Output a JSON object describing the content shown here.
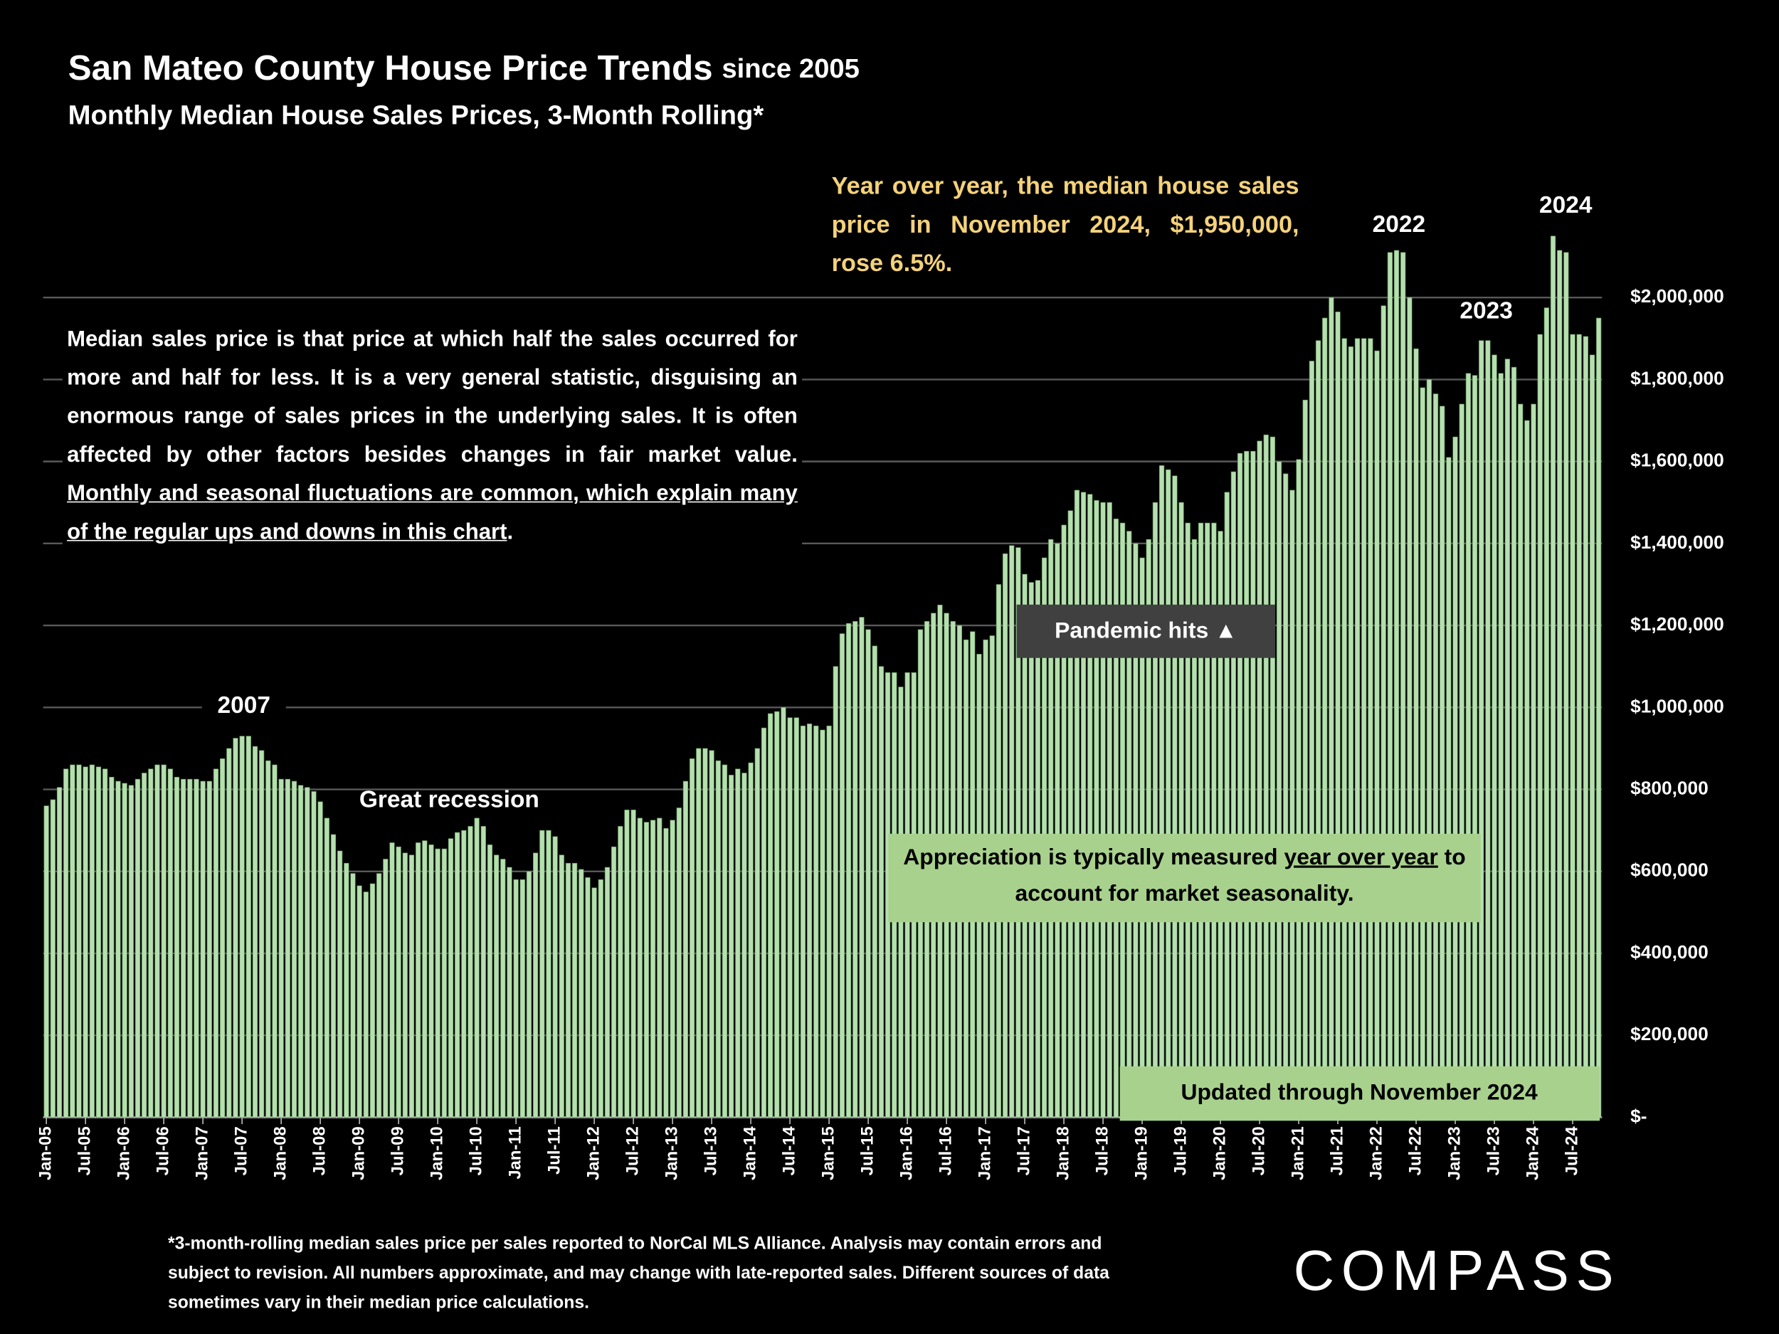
{
  "chart_data": {
    "type": "bar",
    "title": "San Mateo County House Price Trends",
    "title_suffix": "since 2005",
    "subtitle": "Monthly Median House Sales Prices, 3-Month Rolling*",
    "categories": [
      "Jan-05",
      null,
      null,
      null,
      null,
      null,
      "Jul-05",
      null,
      null,
      null,
      null,
      null,
      "Jan-06",
      null,
      null,
      null,
      null,
      null,
      "Jul-06",
      null,
      null,
      null,
      null,
      null,
      "Jan-07",
      null,
      null,
      null,
      null,
      null,
      "Jul-07",
      null,
      null,
      null,
      null,
      null,
      "Jan-08",
      null,
      null,
      null,
      null,
      null,
      "Jul-08",
      null,
      null,
      null,
      null,
      null,
      "Jan-09",
      null,
      null,
      null,
      null,
      null,
      "Jul-09",
      null,
      null,
      null,
      null,
      null,
      "Jan-10",
      null,
      null,
      null,
      null,
      null,
      "Jul-10",
      null,
      null,
      null,
      null,
      null,
      "Jan-11",
      null,
      null,
      null,
      null,
      null,
      "Jul-11",
      null,
      null,
      null,
      null,
      null,
      "Jan-12",
      null,
      null,
      null,
      null,
      null,
      "Jul-12",
      null,
      null,
      null,
      null,
      null,
      "Jan-13",
      null,
      null,
      null,
      null,
      null,
      "Jul-13",
      null,
      null,
      null,
      null,
      null,
      "Jan-14",
      null,
      null,
      null,
      null,
      null,
      "Jul-14",
      null,
      null,
      null,
      null,
      null,
      "Jan-15",
      null,
      null,
      null,
      null,
      null,
      "Jul-15",
      null,
      null,
      null,
      null,
      null,
      "Jan-16",
      null,
      null,
      null,
      null,
      null,
      "Jul-16",
      null,
      null,
      null,
      null,
      null,
      "Jan-17",
      null,
      null,
      null,
      null,
      null,
      "Jul-17",
      null,
      null,
      null,
      null,
      null,
      "Jan-18",
      null,
      null,
      null,
      null,
      null,
      "Jul-18",
      null,
      null,
      null,
      null,
      null,
      "Jan-19",
      null,
      null,
      null,
      null,
      null,
      "Jul-19",
      null,
      null,
      null,
      null,
      null,
      "Jan-20",
      null,
      null,
      null,
      null,
      null,
      "Jul-20",
      null,
      null,
      null,
      null,
      null,
      "Jan-21",
      null,
      null,
      null,
      null,
      null,
      "Jul-21",
      null,
      null,
      null,
      null,
      null,
      "Jan-22",
      null,
      null,
      null,
      null,
      null,
      "Jul-22",
      null,
      null,
      null,
      null,
      null,
      "Jan-23",
      null,
      null,
      null,
      null,
      null,
      "Jul-23",
      null,
      null,
      null,
      null,
      null,
      "Jan-24",
      null,
      null,
      null,
      null,
      null,
      "Jul-24",
      null,
      null,
      null,
      null
    ],
    "values": [
      760000,
      775000,
      805000,
      850000,
      860000,
      860000,
      855000,
      860000,
      855000,
      850000,
      830000,
      820000,
      815000,
      810000,
      825000,
      840000,
      850000,
      860000,
      860000,
      850000,
      830000,
      825000,
      825000,
      825000,
      820000,
      820000,
      850000,
      875000,
      900000,
      925000,
      930000,
      930000,
      905000,
      895000,
      870000,
      860000,
      825000,
      825000,
      820000,
      810000,
      805000,
      795000,
      770000,
      730000,
      690000,
      650000,
      620000,
      595000,
      565000,
      550000,
      570000,
      595000,
      630000,
      670000,
      660000,
      645000,
      640000,
      670000,
      675000,
      665000,
      655000,
      655000,
      680000,
      695000,
      700000,
      710000,
      730000,
      710000,
      665000,
      640000,
      630000,
      610000,
      580000,
      580000,
      600000,
      645000,
      700000,
      700000,
      685000,
      640000,
      620000,
      620000,
      605000,
      585000,
      560000,
      580000,
      610000,
      660000,
      710000,
      750000,
      750000,
      730000,
      720000,
      725000,
      730000,
      705000,
      725000,
      755000,
      820000,
      875000,
      900000,
      900000,
      895000,
      870000,
      860000,
      835000,
      850000,
      840000,
      865000,
      900000,
      950000,
      985000,
      990000,
      1000000,
      975000,
      975000,
      955000,
      960000,
      955000,
      945000,
      955000,
      1100000,
      1180000,
      1205000,
      1210000,
      1220000,
      1190000,
      1150000,
      1100000,
      1085000,
      1085000,
      1050000,
      1085000,
      1085000,
      1190000,
      1210000,
      1230000,
      1250000,
      1230000,
      1210000,
      1200000,
      1165000,
      1185000,
      1130000,
      1165000,
      1175000,
      1300000,
      1375000,
      1395000,
      1390000,
      1325000,
      1305000,
      1310000,
      1365000,
      1410000,
      1400000,
      1445000,
      1480000,
      1530000,
      1525000,
      1520000,
      1505000,
      1500000,
      1500000,
      1460000,
      1450000,
      1430000,
      1400000,
      1365000,
      1410000,
      1500000,
      1590000,
      1580000,
      1565000,
      1500000,
      1450000,
      1410000,
      1450000,
      1450000,
      1450000,
      1430000,
      1525000,
      1575000,
      1620000,
      1625000,
      1625000,
      1650000,
      1665000,
      1660000,
      1600000,
      1570000,
      1530000,
      1605000,
      1750000,
      1845000,
      1895000,
      1950000,
      2000000,
      1965000,
      1900000,
      1880000,
      1900000,
      1900000,
      1900000,
      1870000,
      1980000,
      2110000,
      2115000,
      2110000,
      2000000,
      1875000,
      1780000,
      1800000,
      1765000,
      1735000,
      1610000,
      1660000,
      1740000,
      1815000,
      1810000,
      1895000,
      1895000,
      1860000,
      1815000,
      1850000,
      1830000,
      1740000,
      1700000,
      1740000,
      1910000,
      1975000,
      2150000,
      2115000,
      2110000,
      1910000,
      1910000,
      1905000,
      1860000,
      1950000
    ],
    "color": "#b5dfae",
    "ylim": [
      0,
      2200000
    ],
    "yticks": [
      {
        "value": 0,
        "label": "$-"
      },
      {
        "value": 200000,
        "label": "$200,000"
      },
      {
        "value": 400000,
        "label": "$400,000"
      },
      {
        "value": 600000,
        "label": "$600,000"
      },
      {
        "value": 800000,
        "label": "$800,000"
      },
      {
        "value": 1000000,
        "label": "$1,000,000"
      },
      {
        "value": 1200000,
        "label": "$1,200,000"
      },
      {
        "value": 1400000,
        "label": "$1,400,000"
      },
      {
        "value": 1600000,
        "label": "$1,600,000"
      },
      {
        "value": 1800000,
        "label": "$1,800,000"
      },
      {
        "value": 2000000,
        "label": "$2,000,000"
      }
    ],
    "grid": true,
    "annotations": {
      "yoy": "Year over year, the median house sales price in November 2024, $1,950,000, rose 6.5%.",
      "y2022": "2022",
      "y2023": "2023",
      "y2024": "2024",
      "y2007": "2007",
      "recession": "Great recession",
      "pandemic": "Pandemic hits ▲",
      "explanation": "Median sales price is that price at which half the sales occurred for more and half for less. It is a very general statistic, disguising an enormous range of sales prices in the underlying sales. It is often affected by other factors besides changes in fair market value.",
      "explanation_underlined": "Monthly and seasonal fluctuations are common, which explain many of the regular ups and downs in this chart",
      "explanation_end": ".",
      "appreciation": "Appreciation is typically measured",
      "appreciation_underlined": "year over year",
      "appreciation_end": "to account for market seasonality.",
      "updated": "Updated through November 2024"
    },
    "footnote": "*3-month-rolling median sales price per sales reported to NorCal MLS Alliance. Analysis may contain errors and subject to revision. All numbers approximate, and may change with late-reported sales. Different sources of data sometimes vary in their median price calculations.",
    "logo": "COMPASS"
  }
}
